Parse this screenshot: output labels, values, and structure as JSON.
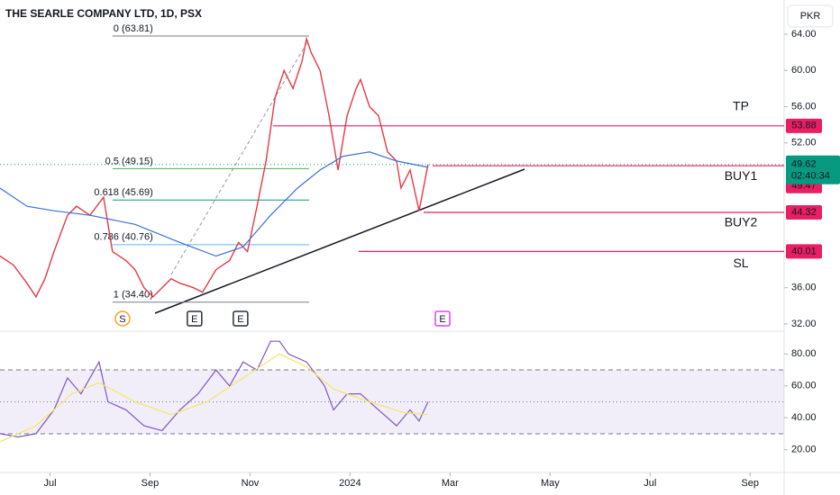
{
  "chart_data": [
    {
      "type": "line",
      "title": "THE SEARLE COMPANY LTD, 1D, PSX",
      "currency": "PKR",
      "xlim": [
        6.0,
        21.68
      ],
      "xticks": [
        {
          "value": 7,
          "label": "Jul"
        },
        {
          "value": 9,
          "label": "Sep"
        },
        {
          "value": 11,
          "label": "Nov"
        },
        {
          "value": 13,
          "label": "2024"
        },
        {
          "value": 15,
          "label": "Mar"
        },
        {
          "value": 17,
          "label": "May"
        },
        {
          "value": 19,
          "label": "Jul"
        },
        {
          "value": 21,
          "label": "Sep"
        }
      ],
      "ylim": [
        31.2,
        67.78
      ],
      "yticks": [
        {
          "value": 64,
          "label": "64.00"
        },
        {
          "value": 60,
          "label": "60.00"
        },
        {
          "value": 56,
          "label": "56.00"
        },
        {
          "value": 52,
          "label": "52.00"
        },
        {
          "value": 36,
          "label": "36.00"
        },
        {
          "value": 32,
          "label": "32.00"
        }
      ],
      "series": [
        {
          "color": "#e53945",
          "x": [
            6.0,
            6.27,
            6.54,
            6.72,
            6.9,
            7.08,
            7.35,
            7.53,
            7.8,
            8.07,
            8.25,
            8.52,
            8.7,
            8.88,
            9.06,
            9.24,
            9.42,
            9.6,
            9.87,
            10.05,
            10.32,
            10.59,
            10.77,
            10.95,
            11.14,
            11.32,
            11.5,
            11.68,
            11.86,
            12.04,
            12.13,
            12.22,
            12.4,
            12.58,
            12.76,
            12.94,
            13.12,
            13.21,
            13.39,
            13.57,
            13.75,
            13.93,
            14.02,
            14.2,
            14.38,
            14.56
          ],
          "values": [
            39.5,
            38.5,
            36.5,
            35,
            37,
            40,
            44,
            45,
            44,
            46,
            40,
            39,
            38,
            36,
            35,
            36,
            37,
            36.5,
            36,
            35.5,
            38,
            39,
            41,
            40,
            45,
            50,
            57,
            60,
            58,
            61,
            63.5,
            62,
            60,
            55,
            49,
            55,
            58,
            59,
            56,
            55,
            51,
            50,
            47,
            49,
            44.5,
            49.62
          ]
        },
        {
          "color": "#3d6fd6",
          "x": [
            6.0,
            6.54,
            7.08,
            7.8,
            8.7,
            9.6,
            10.32,
            10.86,
            11.41,
            11.95,
            12.4,
            12.85,
            13.39,
            13.93,
            14.56
          ],
          "values": [
            47,
            45,
            44.5,
            44,
            43,
            41,
            39.5,
            40.5,
            44,
            47,
            49,
            50.5,
            51,
            50,
            49.3
          ]
        }
      ],
      "fib": {
        "xrange": [
          8.25,
          12.18
        ],
        "levels": [
          {
            "label": "0 (63.81)",
            "value": 63.81,
            "color": "#787b86"
          },
          {
            "label": "0.5 (49.15)",
            "value": 49.15,
            "color": "#4caf50"
          },
          {
            "label": "0.618 (45.69)",
            "value": 45.69,
            "color": "#089981"
          },
          {
            "label": "0.786 (40.76)",
            "value": 40.76,
            "color": "#64b5f6"
          },
          {
            "label": "1 (34.40)",
            "value": 34.4,
            "color": "#787b86"
          }
        ]
      },
      "levels": [
        {
          "label": "TP",
          "value": 53.88,
          "from": 11.46
        },
        {
          "label": "BUY1",
          "value": 49.47,
          "from": 14.65
        },
        {
          "label": "BUY2",
          "value": 44.32,
          "from": 14.47
        },
        {
          "label": "SL",
          "value": 40.01,
          "from": 13.17
        }
      ],
      "level_color": "#e91e63",
      "current": {
        "value": 49.62,
        "countdown": "02:40:34",
        "color": "#089981"
      },
      "events": [
        {
          "label": "S",
          "x": 8.45,
          "color": "#f7a21b"
        },
        {
          "label": "E",
          "x": 9.89,
          "color": "#2a2e39"
        },
        {
          "label": "E",
          "x": 10.81,
          "color": "#2a2e39"
        },
        {
          "label": "E",
          "x": 14.85,
          "color": "#e040fb"
        }
      ]
    },
    {
      "type": "line",
      "xlim": [
        6.0,
        21.68
      ],
      "ylim": [
        5.7,
        94.3
      ],
      "yticks": [
        {
          "value": 80,
          "label": "80.00"
        },
        {
          "value": 60,
          "label": "60.00"
        },
        {
          "value": 40,
          "label": "40.00"
        },
        {
          "value": 20,
          "label": "20.00"
        }
      ],
      "bands": [
        70,
        50,
        30
      ],
      "series": [
        {
          "color": "#7e57c2",
          "x": [
            6.0,
            6.36,
            6.72,
            7.08,
            7.35,
            7.62,
            7.98,
            8.16,
            8.52,
            8.88,
            9.24,
            9.6,
            9.96,
            10.32,
            10.59,
            10.86,
            11.14,
            11.41,
            11.59,
            11.77,
            12.13,
            12.49,
            12.67,
            12.94,
            13.21,
            13.57,
            13.93,
            14.2,
            14.38,
            14.56
          ],
          "values": [
            30,
            28,
            30,
            45,
            65,
            55,
            75,
            50,
            45,
            35,
            32,
            45,
            55,
            70,
            60,
            75,
            70,
            88,
            88,
            80,
            75,
            60,
            45,
            55,
            55,
            45,
            35,
            45,
            38,
            50
          ]
        },
        {
          "color": "#f5e663",
          "x": [
            6.0,
            6.72,
            7.44,
            7.98,
            8.7,
            9.42,
            10.14,
            10.86,
            11.59,
            12.13,
            12.67,
            13.39,
            14.11,
            14.56
          ],
          "values": [
            25,
            35,
            55,
            62,
            50,
            42,
            50,
            65,
            80,
            72,
            58,
            50,
            43,
            42
          ]
        }
      ]
    }
  ]
}
